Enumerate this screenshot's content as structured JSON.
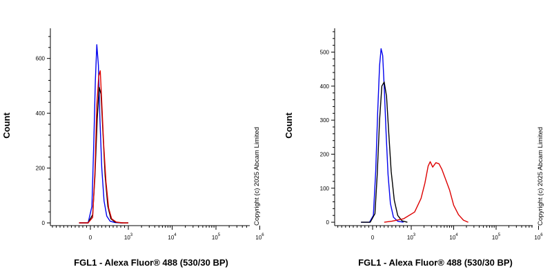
{
  "chart_data": [
    {
      "type": "line",
      "ylabel": "Count",
      "xlabel": "FGL1 - Alexa Fluor® 488 (530/30 BP)",
      "copyright": "Copyright (c) 2025 Abcam Limited",
      "ylim": [
        -10,
        710
      ],
      "y_ticks": [
        0,
        200,
        400,
        600
      ],
      "x_axis_scale": "biexponential",
      "x_ticks": [
        {
          "value": 0,
          "base": "0",
          "exp": ""
        },
        {
          "value": 1000,
          "base": "10",
          "exp": "3"
        },
        {
          "value": 10000,
          "base": "10",
          "exp": "4"
        },
        {
          "value": 100000,
          "base": "10",
          "exp": "5"
        },
        {
          "value": 1000000,
          "base": "10",
          "exp": "6"
        }
      ],
      "series": [
        {
          "color": "#0000ee",
          "x": [
            -300,
            -60,
            40,
            90,
            130,
            170,
            210,
            250,
            300,
            360,
            430,
            520,
            650,
            850
          ],
          "y": [
            0,
            0,
            60,
            290,
            520,
            650,
            575,
            380,
            200,
            80,
            25,
            6,
            1,
            0
          ]
        },
        {
          "color": "#000000",
          "x": [
            -300,
            -60,
            60,
            120,
            180,
            230,
            280,
            330,
            390,
            460,
            540,
            650,
            800,
            1000
          ],
          "y": [
            0,
            0,
            30,
            170,
            380,
            495,
            470,
            330,
            170,
            60,
            15,
            3,
            0,
            0
          ]
        },
        {
          "color": "#dd0000",
          "x": [
            -300,
            -60,
            60,
            120,
            170,
            220,
            260,
            300,
            350,
            410,
            480,
            560,
            680,
            850,
            1000
          ],
          "y": [
            0,
            0,
            20,
            190,
            430,
            535,
            555,
            440,
            285,
            150,
            55,
            15,
            3,
            0,
            0
          ]
        }
      ]
    },
    {
      "type": "line",
      "ylabel": "Count",
      "xlabel": "FGL1 - Alexa Fluor® 488 (530/30 BP)",
      "copyright": "Copyright (c) 2025 Abcam Limited",
      "ylim": [
        -10,
        570
      ],
      "y_ticks": [
        0,
        100,
        200,
        300,
        400,
        500
      ],
      "x_axis_scale": "biexponential",
      "x_ticks": [
        {
          "value": 0,
          "base": "0",
          "exp": ""
        },
        {
          "value": 1000,
          "base": "10",
          "exp": "3"
        },
        {
          "value": 10000,
          "base": "10",
          "exp": "4"
        },
        {
          "value": 100000,
          "base": "10",
          "exp": "5"
        },
        {
          "value": 1000000,
          "base": "10",
          "exp": "6"
        }
      ],
      "series": [
        {
          "color": "#0000ee",
          "x": [
            -300,
            -80,
            20,
            80,
            130,
            180,
            220,
            260,
            300,
            350,
            400,
            460,
            540,
            650,
            800
          ],
          "y": [
            0,
            0,
            20,
            150,
            320,
            460,
            510,
            490,
            400,
            260,
            140,
            55,
            15,
            3,
            0
          ]
        },
        {
          "color": "#000000",
          "x": [
            -300,
            -60,
            60,
            120,
            180,
            240,
            300,
            360,
            420,
            480,
            560,
            650,
            760,
            900
          ],
          "y": [
            0,
            0,
            25,
            140,
            300,
            400,
            412,
            370,
            260,
            150,
            65,
            20,
            4,
            0
          ]
        },
        {
          "color": "#dd0000",
          "x": [
            300,
            500,
            800,
            1200,
            1700,
            2100,
            2500,
            2800,
            3200,
            3800,
            4500,
            5300,
            6500,
            8000,
            10000,
            13000,
            17000,
            22000
          ],
          "y": [
            0,
            3,
            10,
            30,
            70,
            115,
            165,
            178,
            162,
            175,
            172,
            155,
            125,
            95,
            50,
            22,
            6,
            0
          ]
        }
      ]
    }
  ]
}
